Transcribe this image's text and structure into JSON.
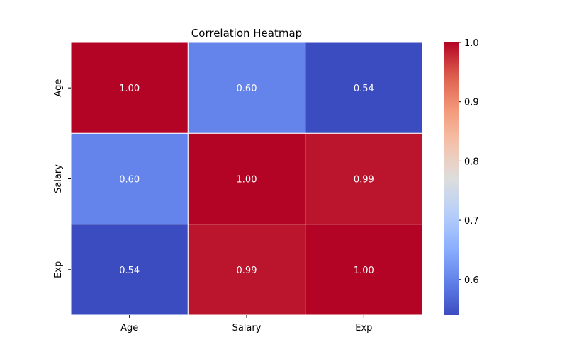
{
  "chart_data": {
    "type": "heatmap",
    "title": "Correlation Heatmap",
    "x_categories": [
      "Age",
      "Salary",
      "Exp"
    ],
    "y_categories": [
      "Age",
      "Salary",
      "Exp"
    ],
    "values": [
      [
        1.0,
        0.6,
        0.54
      ],
      [
        0.6,
        1.0,
        0.99
      ],
      [
        0.54,
        0.99,
        1.0
      ]
    ],
    "value_format_decimals": 2,
    "colormap": "coolwarm",
    "color_range": [
      0.54,
      1.0
    ],
    "colorbar_ticks": [
      0.6,
      0.7,
      0.8,
      0.9,
      1.0
    ],
    "cell_border_color": "#ffffff",
    "annotation_text_color": "#ffffff",
    "grid": false,
    "colorbar_position": "right"
  }
}
